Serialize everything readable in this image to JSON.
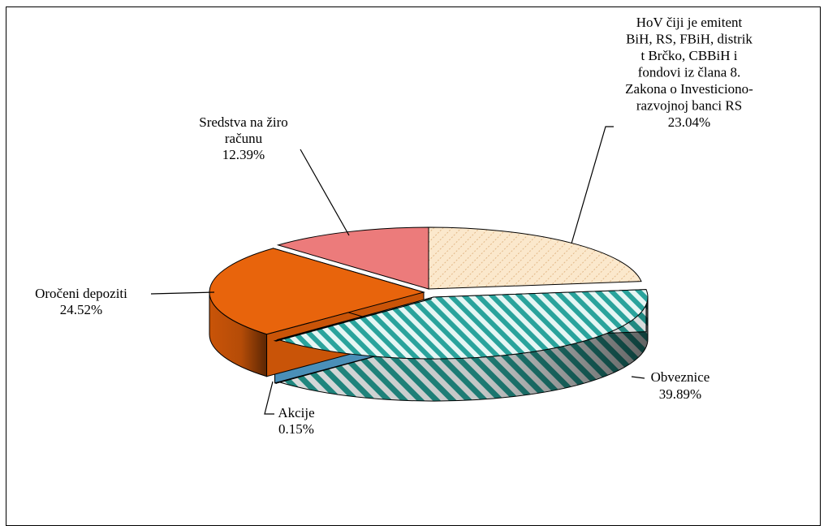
{
  "chart_data": {
    "type": "pie",
    "title": "",
    "categories": [
      "HoV čiji je emitent BiH, RS, FBiH, distrik t Brčko, CBBiH i fondovi iz člana 8. Zakona o Investiciono-razvojnoj banci RS",
      "Obveznice",
      "Akcije",
      "Oročeni depoziti",
      "Sredstva na žiro računu"
    ],
    "values": [
      23.04,
      39.89,
      0.15,
      24.52,
      12.39
    ],
    "units": "%",
    "colors": {
      "hov": "#f8dcb4",
      "obveznice": "#2aa39c",
      "akcije": "#6ab0d8",
      "oroceni": "#e8640c",
      "sredstva": "#ec7b7b"
    },
    "labels": [
      {
        "lines": [
          "HoV čiji je emitent",
          "BiH, RS, FBiH, distrik",
          "t Brčko, CBBiH i",
          "fondovi iz člana 8.",
          "Zakona o Investiciono-",
          "razvojnoj banci RS",
          "23.04%"
        ]
      },
      {
        "lines": [
          "Obveznice",
          "39.89%"
        ]
      },
      {
        "lines": [
          "Akcije",
          "0.15%"
        ]
      },
      {
        "lines": [
          "Oročeni depoziti",
          "24.52%"
        ]
      },
      {
        "lines": [
          "Sredstva na žiro",
          "računu",
          "12.39%"
        ]
      }
    ],
    "legend": "none",
    "grid": false,
    "style": "3d-exploded-pie"
  }
}
